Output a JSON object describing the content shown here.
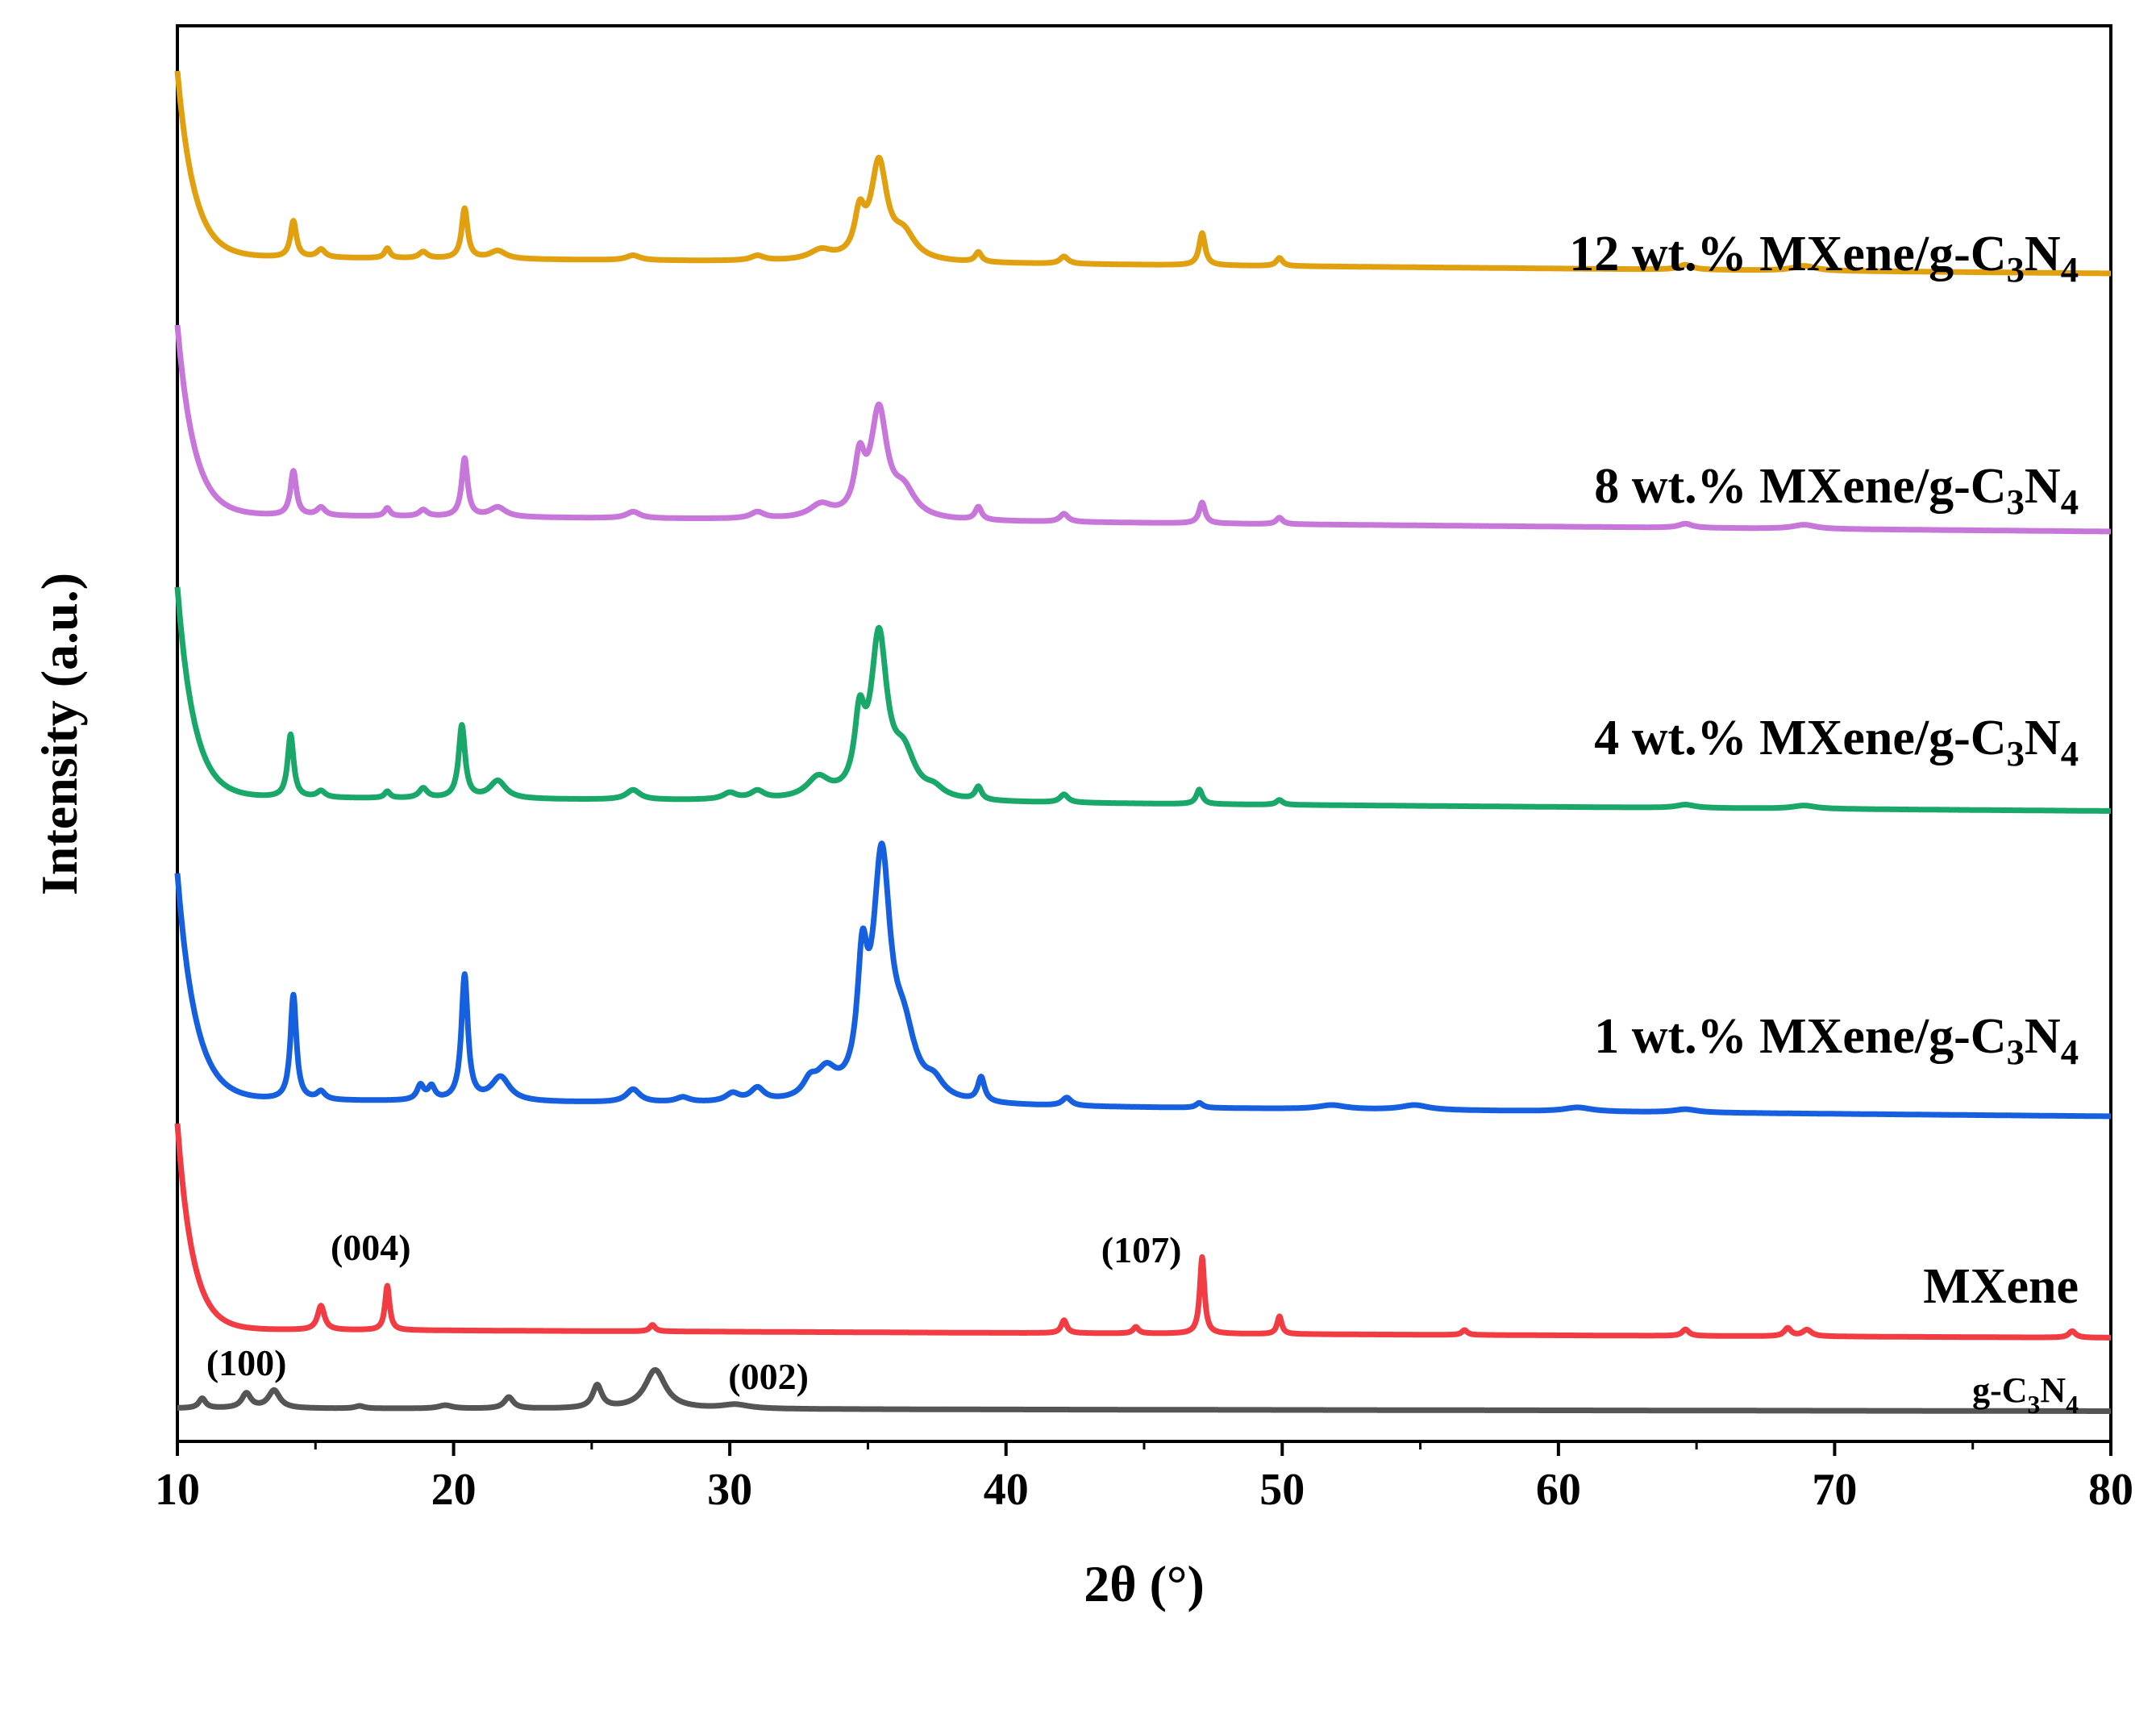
{
  "chart_data": {
    "type": "line",
    "title": "",
    "xlabel": "2θ (°)",
    "ylabel": "Intensity (a.u.)",
    "xlim": [
      10,
      80
    ],
    "xticks": [
      10,
      20,
      30,
      40,
      50,
      60,
      70,
      80
    ],
    "y_ticks_shown": false,
    "grid": false,
    "legend": "labels placed at right end of each curve",
    "series": [
      {
        "name": "12 wt.% MXene/g-C3N4",
        "label_main": "12 wt.% MXene/g-C",
        "label_sub1": "3",
        "label_mid": "N",
        "label_sub2": "4",
        "color": "#E0A010",
        "offset": 1400,
        "baseline": 40,
        "start_intensity": 230,
        "decay_width": 0.6,
        "peaks": [
          [
            14.2,
            45,
            0.13
          ],
          [
            15.2,
            10,
            0.18
          ],
          [
            17.6,
            12,
            0.12
          ],
          [
            18.9,
            8,
            0.18
          ],
          [
            20.4,
            62,
            0.13
          ],
          [
            21.6,
            10,
            0.35
          ],
          [
            26.5,
            6,
            0.3
          ],
          [
            31.0,
            6,
            0.3
          ],
          [
            33.3,
            12,
            0.5
          ],
          [
            34.7,
            50,
            0.22
          ],
          [
            35.4,
            118,
            0.35
          ],
          [
            36.3,
            30,
            0.5
          ],
          [
            39.0,
            12,
            0.14
          ],
          [
            42.1,
            9,
            0.18
          ],
          [
            47.1,
            40,
            0.13
          ],
          [
            49.9,
            10,
            0.14
          ],
          [
            64.6,
            6,
            0.3
          ],
          [
            68.9,
            6,
            0.5
          ]
        ],
        "drift": -0.3
      },
      {
        "name": "8 wt.% MXene/g-C3N4",
        "label_main": "8 wt.% MXene/g-C",
        "label_sub1": "3",
        "label_mid": "N",
        "label_sub2": "4",
        "color": "#C776DA",
        "offset": 1080,
        "baseline": 40,
        "start_intensity": 235,
        "decay_width": 0.6,
        "peaks": [
          [
            14.2,
            55,
            0.13
          ],
          [
            15.2,
            10,
            0.18
          ],
          [
            17.6,
            10,
            0.12
          ],
          [
            18.9,
            8,
            0.18
          ],
          [
            20.4,
            72,
            0.13
          ],
          [
            21.6,
            12,
            0.35
          ],
          [
            26.5,
            8,
            0.3
          ],
          [
            31.0,
            8,
            0.3
          ],
          [
            33.3,
            16,
            0.5
          ],
          [
            34.7,
            65,
            0.22
          ],
          [
            35.4,
            130,
            0.35
          ],
          [
            36.3,
            32,
            0.5
          ],
          [
            39.0,
            16,
            0.14
          ],
          [
            42.1,
            10,
            0.18
          ],
          [
            47.1,
            26,
            0.13
          ],
          [
            49.9,
            8,
            0.14
          ],
          [
            64.6,
            5,
            0.3
          ],
          [
            68.9,
            5,
            0.5
          ]
        ],
        "drift": -0.3
      },
      {
        "name": "4 wt.% MXene/g-C3N4",
        "label_main": "4 wt.% MXene/g-C",
        "label_sub1": "3",
        "label_mid": "N",
        "label_sub2": "4",
        "color": "#1AA86A",
        "offset": 730,
        "baseline": 40,
        "start_intensity": 260,
        "decay_width": 0.6,
        "peaks": [
          [
            14.1,
            78,
            0.13
          ],
          [
            15.2,
            8,
            0.18
          ],
          [
            17.6,
            8,
            0.12
          ],
          [
            18.9,
            12,
            0.18
          ],
          [
            20.3,
            90,
            0.14
          ],
          [
            21.6,
            22,
            0.35
          ],
          [
            26.5,
            12,
            0.3
          ],
          [
            30.0,
            8,
            0.3
          ],
          [
            31.0,
            10,
            0.3
          ],
          [
            33.2,
            25,
            0.5
          ],
          [
            34.7,
            85,
            0.22
          ],
          [
            35.4,
            195,
            0.35
          ],
          [
            36.3,
            50,
            0.5
          ],
          [
            37.4,
            10,
            0.4
          ],
          [
            39.0,
            16,
            0.14
          ],
          [
            42.1,
            10,
            0.18
          ],
          [
            47.0,
            18,
            0.13
          ],
          [
            49.9,
            6,
            0.14
          ],
          [
            64.6,
            4,
            0.4
          ],
          [
            68.9,
            4,
            0.5
          ]
        ],
        "drift": -0.25
      },
      {
        "name": "1 wt.% MXene/g-C3N4",
        "label_main": "1 wt.% MXene/g-C",
        "label_sub1": "3",
        "label_mid": "N",
        "label_sub2": "4",
        "color": "#1660E0",
        "offset": 355,
        "baseline": 40,
        "start_intensity": 280,
        "decay_width": 0.65,
        "peaks": [
          [
            14.2,
            130,
            0.13
          ],
          [
            15.2,
            10,
            0.18
          ],
          [
            18.8,
            18,
            0.15
          ],
          [
            19.2,
            16,
            0.15
          ],
          [
            20.4,
            155,
            0.14
          ],
          [
            21.7,
            30,
            0.4
          ],
          [
            26.5,
            16,
            0.3
          ],
          [
            28.3,
            6,
            0.3
          ],
          [
            30.1,
            10,
            0.3
          ],
          [
            31.0,
            16,
            0.3
          ],
          [
            32.9,
            18,
            0.3
          ],
          [
            33.5,
            32,
            0.45
          ],
          [
            34.8,
            140,
            0.22
          ],
          [
            35.5,
            290,
            0.38
          ],
          [
            36.3,
            70,
            0.5
          ],
          [
            37.4,
            18,
            0.4
          ],
          [
            39.1,
            30,
            0.15
          ],
          [
            42.2,
            10,
            0.2
          ],
          [
            47.0,
            6,
            0.15
          ],
          [
            51.8,
            5,
            0.6
          ],
          [
            54.8,
            6,
            0.6
          ],
          [
            60.7,
            5,
            0.6
          ],
          [
            64.6,
            4,
            0.5
          ]
        ],
        "drift": -0.3
      },
      {
        "name": "MXene",
        "label_main": "MXene",
        "label_sub1": "",
        "label_mid": "",
        "label_sub2": "",
        "color": "#F03C42",
        "offset": 70,
        "baseline": 40,
        "start_intensity": 255,
        "decay_width": 0.55,
        "peaks": [
          [
            15.2,
            30,
            0.15
          ],
          [
            17.6,
            55,
            0.1
          ],
          [
            27.2,
            8,
            0.12
          ],
          [
            42.1,
            16,
            0.12
          ],
          [
            44.7,
            8,
            0.12
          ],
          [
            47.1,
            95,
            0.1
          ],
          [
            49.9,
            22,
            0.1
          ],
          [
            56.6,
            6,
            0.12
          ],
          [
            64.6,
            8,
            0.15
          ],
          [
            68.3,
            10,
            0.15
          ],
          [
            69.0,
            8,
            0.2
          ],
          [
            78.6,
            8,
            0.15
          ]
        ],
        "drift": -0.15
      },
      {
        "name": "g-C3N4",
        "label_main": "g-C",
        "label_sub1": "3",
        "label_mid": "N",
        "label_sub2": "4",
        "color": "#555555",
        "offset": 0,
        "baseline": 12,
        "start_intensity": 0,
        "decay_width": 0.5,
        "peaks": [
          [
            10.9,
            12,
            0.15
          ],
          [
            12.5,
            18,
            0.2
          ],
          [
            13.5,
            22,
            0.25
          ],
          [
            16.6,
            3,
            0.2
          ],
          [
            19.7,
            4,
            0.3
          ],
          [
            22.0,
            14,
            0.2
          ],
          [
            25.2,
            28,
            0.2
          ],
          [
            27.3,
            48,
            0.45
          ],
          [
            30.2,
            5,
            0.6
          ]
        ],
        "drift": -0.05
      }
    ],
    "annotations": [
      {
        "text": "(100)",
        "x": 12.5,
        "series": "g-C3N4"
      },
      {
        "text": "(002)",
        "x": 31.4,
        "series": "g-C3N4"
      },
      {
        "text": "(004)",
        "x": 17.0,
        "series": "MXene"
      },
      {
        "text": "(107)",
        "x": 44.9,
        "series": "MXene"
      }
    ]
  }
}
